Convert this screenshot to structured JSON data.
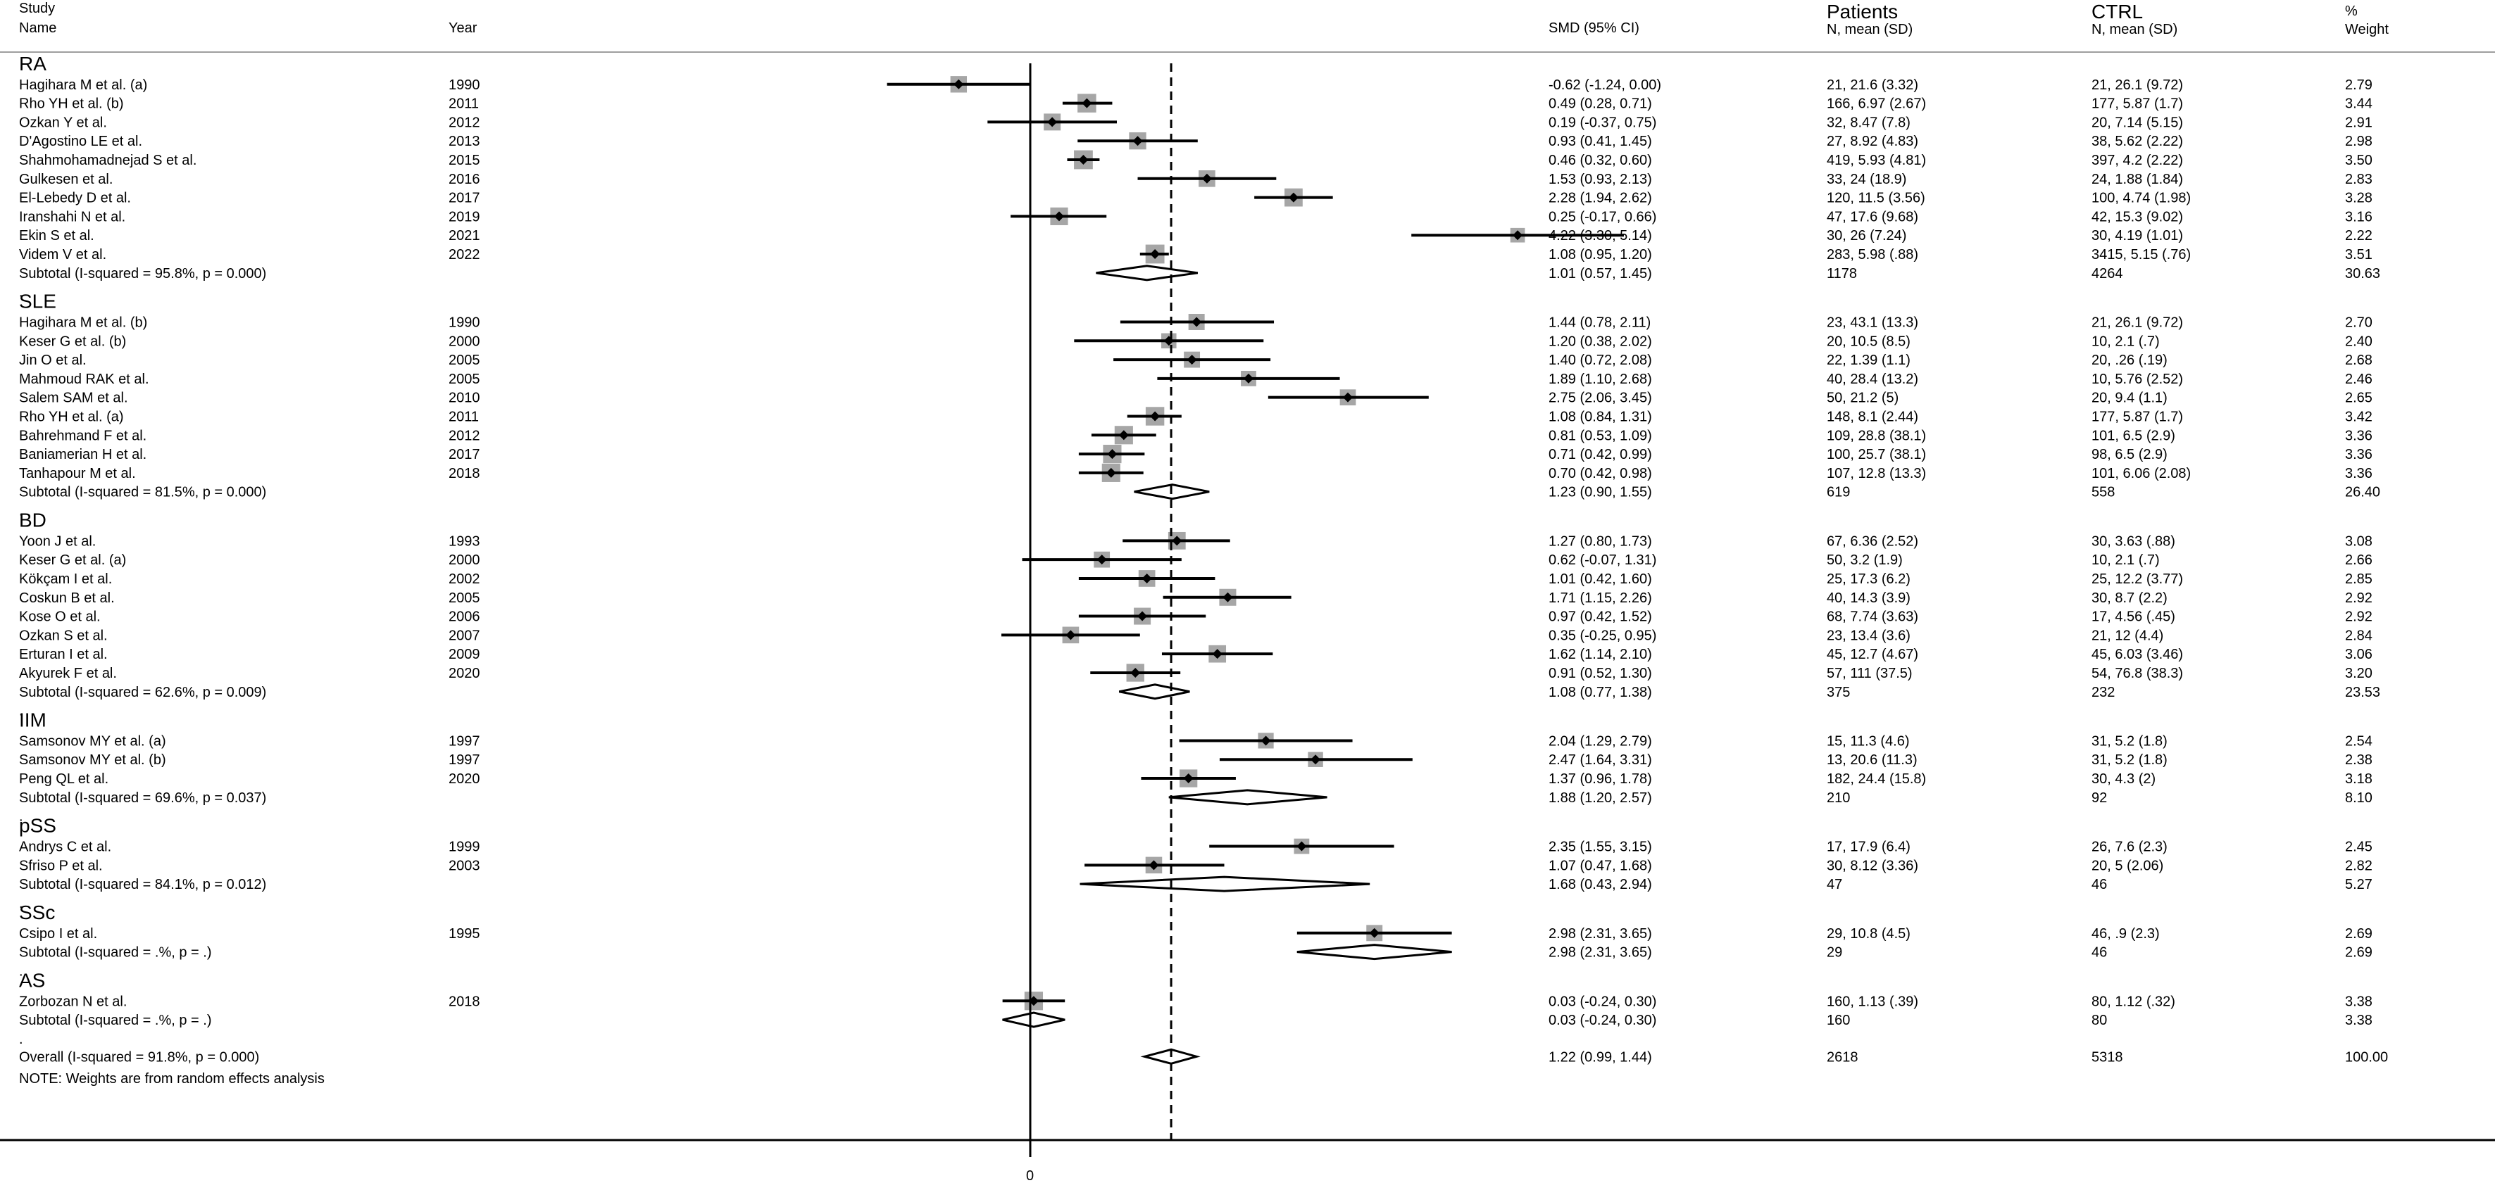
{
  "chart_data": {
    "type": "forest",
    "x_tick_labels": [
      "0"
    ],
    "null_value": 0,
    "overall_line": 1.22,
    "note": "NOTE: Weights are from random effects analysis",
    "headers": {
      "study": "Study",
      "name": "Name",
      "year": "Year",
      "smd": "SMD (95% CI)",
      "patients": "Patients",
      "patients_sub": "N, mean (SD)",
      "ctrl": "CTRL",
      "ctrl_sub": "N, mean (SD)",
      "weight": "%",
      "weight_sub": "Weight"
    },
    "groups": [
      {
        "name": "RA",
        "studies": [
          {
            "study": "Hagihara M et al. (a)",
            "year": "1990",
            "smd": -0.62,
            "lo": -1.24,
            "hi": 0.0,
            "ci_text": "-0.62 (-1.24, 0.00)",
            "patients": "21, 21.6 (3.32)",
            "ctrl": "21, 26.1 (9.72)",
            "weight": "2.79"
          },
          {
            "study": "Rho YH et al. (b)",
            "year": "2011",
            "smd": 0.49,
            "lo": 0.28,
            "hi": 0.71,
            "ci_text": "0.49 (0.28, 0.71)",
            "patients": "166, 6.97 (2.67)",
            "ctrl": "177, 5.87 (1.7)",
            "weight": "3.44"
          },
          {
            "study": "Ozkan Y et al.",
            "year": "2012",
            "smd": 0.19,
            "lo": -0.37,
            "hi": 0.75,
            "ci_text": "0.19 (-0.37, 0.75)",
            "patients": "32, 8.47 (7.8)",
            "ctrl": "20, 7.14 (5.15)",
            "weight": "2.91"
          },
          {
            "study": "D'Agostino LE et al.",
            "year": "2013",
            "smd": 0.93,
            "lo": 0.41,
            "hi": 1.45,
            "ci_text": "0.93 (0.41, 1.45)",
            "patients": "27, 8.92 (4.83)",
            "ctrl": "38, 5.62 (2.22)",
            "weight": "2.98"
          },
          {
            "study": "Shahmohamadnejad S et al.",
            "year": "2015",
            "smd": 0.46,
            "lo": 0.32,
            "hi": 0.6,
            "ci_text": "0.46 (0.32, 0.60)",
            "patients": "419, 5.93 (4.81)",
            "ctrl": "397, 4.2 (2.22)",
            "weight": "3.50"
          },
          {
            "study": "Gulkesen et al.",
            "year": "2016",
            "smd": 1.53,
            "lo": 0.93,
            "hi": 2.13,
            "ci_text": "1.53 (0.93, 2.13)",
            "patients": "33, 24 (18.9)",
            "ctrl": "24, 1.88 (1.84)",
            "weight": "2.83"
          },
          {
            "study": "El-Lebedy D et al.",
            "year": "2017",
            "smd": 2.28,
            "lo": 1.94,
            "hi": 2.62,
            "ci_text": "2.28 (1.94, 2.62)",
            "patients": "120, 11.5 (3.56)",
            "ctrl": "100, 4.74 (1.98)",
            "weight": "3.28"
          },
          {
            "study": "Iranshahi N et al.",
            "year": "2019",
            "smd": 0.25,
            "lo": -0.17,
            "hi": 0.66,
            "ci_text": "0.25 (-0.17, 0.66)",
            "patients": "47, 17.6 (9.68)",
            "ctrl": "42, 15.3 (9.02)",
            "weight": "3.16"
          },
          {
            "study": "Ekin S et al.",
            "year": "2021",
            "smd": 4.22,
            "lo": 3.3,
            "hi": 5.14,
            "ci_text": "4.22 (3.30, 5.14)",
            "patients": "30, 26 (7.24)",
            "ctrl": "30, 4.19 (1.01)",
            "weight": "2.22"
          },
          {
            "study": "Videm V et al.",
            "year": "2022",
            "smd": 1.08,
            "lo": 0.95,
            "hi": 1.2,
            "ci_text": "1.08 (0.95, 1.20)",
            "patients": "283, 5.98 (.88)",
            "ctrl": "3415, 5.15 (.76)",
            "weight": "3.51"
          }
        ],
        "subtotal": {
          "label": "Subtotal  (I-squared = 95.8%, p = 0.000)",
          "smd": 1.01,
          "lo": 0.57,
          "hi": 1.45,
          "ci_text": "1.01 (0.57, 1.45)",
          "patients": "1178",
          "ctrl": "4264",
          "weight": "30.63"
        }
      },
      {
        "name": "SLE",
        "studies": [
          {
            "study": "Hagihara M et al. (b)",
            "year": "1990",
            "smd": 1.44,
            "lo": 0.78,
            "hi": 2.11,
            "ci_text": "1.44 (0.78, 2.11)",
            "patients": "23, 43.1 (13.3)",
            "ctrl": "21, 26.1 (9.72)",
            "weight": "2.70"
          },
          {
            "study": "Keser G et al. (b)",
            "year": "2000",
            "smd": 1.2,
            "lo": 0.38,
            "hi": 2.02,
            "ci_text": "1.20 (0.38, 2.02)",
            "patients": "20, 10.5 (8.5)",
            "ctrl": "10, 2.1 (.7)",
            "weight": "2.40"
          },
          {
            "study": "Jin O et al.",
            "year": "2005",
            "smd": 1.4,
            "lo": 0.72,
            "hi": 2.08,
            "ci_text": "1.40 (0.72, 2.08)",
            "patients": "22, 1.39 (1.1)",
            "ctrl": "20, .26 (.19)",
            "weight": "2.68"
          },
          {
            "study": "Mahmoud RAK et al.",
            "year": "2005",
            "smd": 1.89,
            "lo": 1.1,
            "hi": 2.68,
            "ci_text": "1.89 (1.10, 2.68)",
            "patients": "40, 28.4 (13.2)",
            "ctrl": "10, 5.76 (2.52)",
            "weight": "2.46"
          },
          {
            "study": "Salem SAM et al.",
            "year": "2010",
            "smd": 2.75,
            "lo": 2.06,
            "hi": 3.45,
            "ci_text": "2.75 (2.06, 3.45)",
            "patients": "50, 21.2 (5)",
            "ctrl": "20, 9.4 (1.1)",
            "weight": "2.65"
          },
          {
            "study": "Rho YH et al. (a)",
            "year": "2011",
            "smd": 1.08,
            "lo": 0.84,
            "hi": 1.31,
            "ci_text": "1.08 (0.84, 1.31)",
            "patients": "148, 8.1 (2.44)",
            "ctrl": "177, 5.87 (1.7)",
            "weight": "3.42"
          },
          {
            "study": "Bahrehmand F et al.",
            "year": "2012",
            "smd": 0.81,
            "lo": 0.53,
            "hi": 1.09,
            "ci_text": "0.81 (0.53, 1.09)",
            "patients": "109, 28.8 (38.1)",
            "ctrl": "101, 6.5 (2.9)",
            "weight": "3.36"
          },
          {
            "study": "Baniamerian H et al.",
            "year": "2017",
            "smd": 0.71,
            "lo": 0.42,
            "hi": 0.99,
            "ci_text": "0.71 (0.42, 0.99)",
            "patients": "100, 25.7 (38.1)",
            "ctrl": "98, 6.5 (2.9)",
            "weight": "3.36"
          },
          {
            "study": "Tanhapour M et al.",
            "year": "2018",
            "smd": 0.7,
            "lo": 0.42,
            "hi": 0.98,
            "ci_text": "0.70 (0.42, 0.98)",
            "patients": "107, 12.8 (13.3)",
            "ctrl": "101, 6.06 (2.08)",
            "weight": "3.36"
          }
        ],
        "subtotal": {
          "label": "Subtotal  (I-squared = 81.5%, p = 0.000)",
          "smd": 1.23,
          "lo": 0.9,
          "hi": 1.55,
          "ci_text": "1.23 (0.90, 1.55)",
          "patients": "619",
          "ctrl": "558",
          "weight": "26.40"
        }
      },
      {
        "name": "BD",
        "studies": [
          {
            "study": "Yoon J et al.",
            "year": "1993",
            "smd": 1.27,
            "lo": 0.8,
            "hi": 1.73,
            "ci_text": "1.27 (0.80, 1.73)",
            "patients": "67, 6.36 (2.52)",
            "ctrl": "30, 3.63 (.88)",
            "weight": "3.08"
          },
          {
            "study": "Keser G et al. (a)",
            "year": "2000",
            "smd": 0.62,
            "lo": -0.07,
            "hi": 1.31,
            "ci_text": "0.62 (-0.07, 1.31)",
            "patients": "50, 3.2 (1.9)",
            "ctrl": "10, 2.1 (.7)",
            "weight": "2.66"
          },
          {
            "study": "Kökçam I et al.",
            "year": "2002",
            "smd": 1.01,
            "lo": 0.42,
            "hi": 1.6,
            "ci_text": "1.01 (0.42, 1.60)",
            "patients": "25, 17.3 (6.2)",
            "ctrl": "25, 12.2 (3.77)",
            "weight": "2.85"
          },
          {
            "study": "Coskun B et al.",
            "year": "2005",
            "smd": 1.71,
            "lo": 1.15,
            "hi": 2.26,
            "ci_text": "1.71 (1.15, 2.26)",
            "patients": "40, 14.3 (3.9)",
            "ctrl": "30, 8.7 (2.2)",
            "weight": "2.92"
          },
          {
            "study": "Kose O et al.",
            "year": "2006",
            "smd": 0.97,
            "lo": 0.42,
            "hi": 1.52,
            "ci_text": "0.97 (0.42, 1.52)",
            "patients": "68, 7.74 (3.63)",
            "ctrl": "17, 4.56 (.45)",
            "weight": "2.92"
          },
          {
            "study": "Ozkan  S et al.",
            "year": "2007",
            "smd": 0.35,
            "lo": -0.25,
            "hi": 0.95,
            "ci_text": "0.35 (-0.25, 0.95)",
            "patients": "23, 13.4 (3.6)",
            "ctrl": "21, 12 (4.4)",
            "weight": "2.84"
          },
          {
            "study": "Erturan I et al.",
            "year": "2009",
            "smd": 1.62,
            "lo": 1.14,
            "hi": 2.1,
            "ci_text": "1.62 (1.14, 2.10)",
            "patients": "45, 12.7 (4.67)",
            "ctrl": "45, 6.03 (3.46)",
            "weight": "3.06"
          },
          {
            "study": "Akyurek F et al.",
            "year": "2020",
            "smd": 0.91,
            "lo": 0.52,
            "hi": 1.3,
            "ci_text": "0.91 (0.52, 1.30)",
            "patients": "57, 111 (37.5)",
            "ctrl": "54, 76.8 (38.3)",
            "weight": "3.20"
          }
        ],
        "subtotal": {
          "label": "Subtotal  (I-squared = 62.6%, p = 0.009)",
          "smd": 1.08,
          "lo": 0.77,
          "hi": 1.38,
          "ci_text": "1.08 (0.77, 1.38)",
          "patients": "375",
          "ctrl": "232",
          "weight": "23.53"
        }
      },
      {
        "name": "IIM",
        "studies": [
          {
            "study": "Samsonov MY et al. (a)",
            "year": "1997",
            "smd": 2.04,
            "lo": 1.29,
            "hi": 2.79,
            "ci_text": "2.04 (1.29, 2.79)",
            "patients": "15, 11.3 (4.6)",
            "ctrl": "31, 5.2 (1.8)",
            "weight": "2.54"
          },
          {
            "study": "Samsonov MY et al. (b)",
            "year": "1997",
            "smd": 2.47,
            "lo": 1.64,
            "hi": 3.31,
            "ci_text": "2.47 (1.64, 3.31)",
            "patients": "13, 20.6 (11.3)",
            "ctrl": "31, 5.2 (1.8)",
            "weight": "2.38"
          },
          {
            "study": "Peng QL et al.",
            "year": "2020",
            "smd": 1.37,
            "lo": 0.96,
            "hi": 1.78,
            "ci_text": "1.37 (0.96, 1.78)",
            "patients": "182, 24.4 (15.8)",
            "ctrl": "30, 4.3 (2)",
            "weight": "3.18"
          }
        ],
        "subtotal": {
          "label": "Subtotal  (I-squared = 69.6%, p = 0.037)",
          "smd": 1.88,
          "lo": 1.2,
          "hi": 2.57,
          "ci_text": "1.88 (1.20, 2.57)",
          "patients": "210",
          "ctrl": "92",
          "weight": "8.10"
        }
      },
      {
        "name": "pSS",
        "studies": [
          {
            "study": "Andrys C et al.",
            "year": "1999",
            "smd": 2.35,
            "lo": 1.55,
            "hi": 3.15,
            "ci_text": "2.35 (1.55, 3.15)",
            "patients": "17, 17.9 (6.4)",
            "ctrl": "26, 7.6 (2.3)",
            "weight": "2.45"
          },
          {
            "study": "Sfriso P et al.",
            "year": "2003",
            "smd": 1.07,
            "lo": 0.47,
            "hi": 1.68,
            "ci_text": "1.07 (0.47, 1.68)",
            "patients": "30, 8.12 (3.36)",
            "ctrl": "20, 5 (2.06)",
            "weight": "2.82"
          }
        ],
        "subtotal": {
          "label": "Subtotal  (I-squared = 84.1%, p = 0.012)",
          "smd": 1.68,
          "lo": 0.43,
          "hi": 2.94,
          "ci_text": "1.68 (0.43, 2.94)",
          "patients": "47",
          "ctrl": "46",
          "weight": "5.27"
        }
      },
      {
        "name": "SSc",
        "studies": [
          {
            "study": "Csipo I et al.",
            "year": "1995",
            "smd": 2.98,
            "lo": 2.31,
            "hi": 3.65,
            "ci_text": "2.98 (2.31, 3.65)",
            "patients": "29, 10.8 (4.5)",
            "ctrl": "46, .9 (2.3)",
            "weight": "2.69"
          }
        ],
        "subtotal": {
          "label": "Subtotal  (I-squared = .%, p = .)",
          "smd": 2.98,
          "lo": 2.31,
          "hi": 3.65,
          "ci_text": "2.98 (2.31, 3.65)",
          "patients": "29",
          "ctrl": "46",
          "weight": "2.69"
        }
      },
      {
        "name": "AS",
        "studies": [
          {
            "study": "Zorbozan N et al.",
            "year": "2018",
            "smd": 0.03,
            "lo": -0.24,
            "hi": 0.3,
            "ci_text": "0.03 (-0.24, 0.30)",
            "patients": "160, 1.13 (.39)",
            "ctrl": "80, 1.12 (.32)",
            "weight": "3.38"
          }
        ],
        "subtotal": {
          "label": "Subtotal  (I-squared = .%, p = .)",
          "smd": 0.03,
          "lo": -0.24,
          "hi": 0.3,
          "ci_text": "0.03 (-0.24, 0.30)",
          "patients": "160",
          "ctrl": "80",
          "weight": "3.38"
        }
      }
    ],
    "overall": {
      "label": "Overall  (I-squared = 91.8%, p = 0.000)",
      "smd": 1.22,
      "lo": 0.99,
      "hi": 1.44,
      "ci_text": "1.22 (0.99, 1.44)",
      "patients": "2618",
      "ctrl": "5318",
      "weight": "100.00"
    },
    "colors": {
      "text": "#000000",
      "weight_box": "#a6a6a6",
      "point": "#000000",
      "lines": "#000000"
    }
  }
}
